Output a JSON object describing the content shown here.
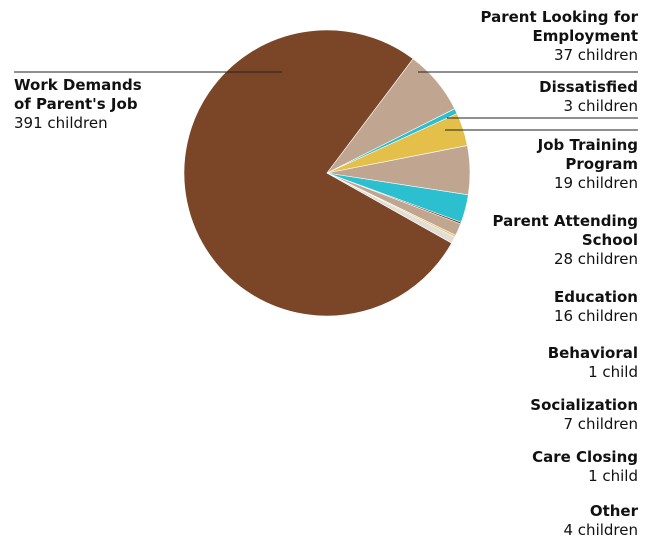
{
  "chart_data": {
    "type": "pie",
    "categories": [
      "Work Demands of Parent's Job",
      "Parent Looking for Employment",
      "Dissatisfied",
      "Job Training Program",
      "Parent Attending School",
      "Education",
      "Behavioral",
      "Socialization",
      "Care Closing",
      "Other"
    ],
    "values": [
      391,
      37,
      3,
      19,
      28,
      16,
      1,
      7,
      1,
      4
    ],
    "value_labels": [
      "391 children",
      "37 children",
      "3 children",
      "19 children",
      "28 children",
      "16 children",
      "1 child",
      "7 children",
      "1 child",
      "4 children"
    ],
    "colors": [
      "#7b4527",
      "#c0a690",
      "#2bbfcf",
      "#e4c04a",
      "#c0a690",
      "#2bbfcf",
      "#6b3a1f",
      "#c0a690",
      "#e4c04a",
      "#e2ddd6"
    ]
  }
}
